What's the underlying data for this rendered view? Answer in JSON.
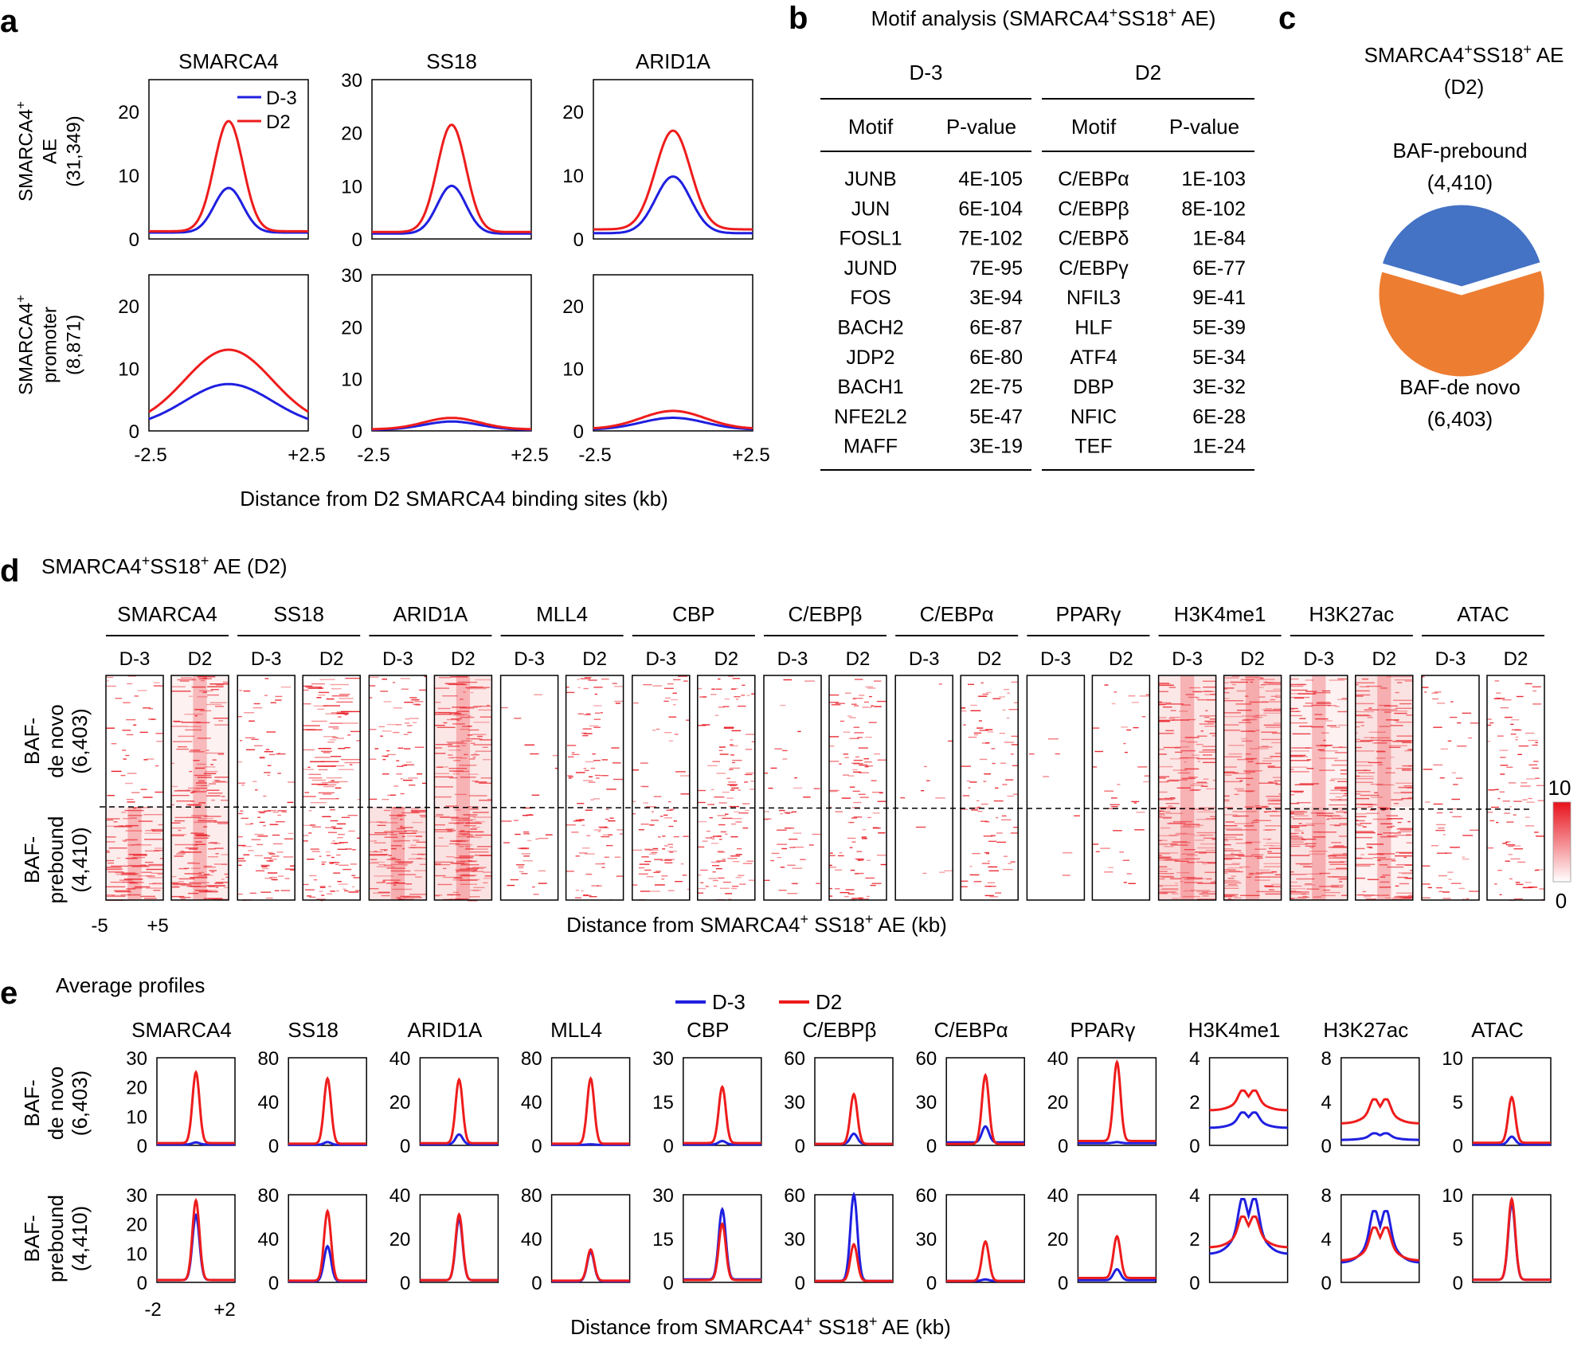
{
  "panel_labels": [
    "a",
    "b",
    "c",
    "d",
    "e"
  ],
  "colors": {
    "d_minus3": "#1f1fe0",
    "d2": "#ee1c1c",
    "blue_label": "#1f5fa6",
    "orange_label": "#e36c1a",
    "pie_blue": "#4472c4",
    "pie_orange": "#ed7d31"
  },
  "chart_data": [
    {
      "type": "line",
      "panel": "a",
      "title": "",
      "xlabel": "Distance from D2 SMARCA4 binding sites (kb)",
      "columns": [
        "SMARCA4",
        "SS18",
        "ARID1A"
      ],
      "row_labels": [
        [
          "SMARCA4⁺",
          "AE",
          "(31,349)"
        ],
        [
          "SMARCA4⁺",
          "promoter",
          "(8,871)"
        ]
      ],
      "x_ticks": [
        "-2.5",
        "+2.5"
      ],
      "ylims": [
        [
          0,
          25
        ],
        [
          0,
          30
        ],
        [
          0,
          25
        ]
      ],
      "yticks": [
        [
          0,
          10,
          20
        ],
        [
          0,
          10,
          20,
          30
        ],
        [
          0,
          10,
          20
        ]
      ],
      "legend": [
        "D-3",
        "D2"
      ],
      "series": [
        {
          "name": "D-3",
          "peaks": [
            [
              8,
              10,
              9.8
            ],
            [
              7.5,
              1.8,
              2.1
            ]
          ],
          "bases": [
            [
              1,
              1,
              0.9
            ],
            [
              0.6,
              0.2,
              0.2
            ]
          ],
          "widths": [
            [
              0.18,
              0.18,
              0.22
            ],
            [
              0.55,
              0.35,
              0.4
            ]
          ]
        },
        {
          "name": "D2",
          "peaks": [
            [
              18.5,
              21.5,
              17
            ],
            [
              13,
              2.5,
              3.2
            ]
          ],
          "bases": [
            [
              1.2,
              1.3,
              1.5
            ],
            [
              0.7,
              0.3,
              0.3
            ]
          ],
          "widths": [
            [
              0.18,
              0.18,
              0.22
            ],
            [
              0.55,
              0.35,
              0.4
            ]
          ]
        }
      ]
    },
    {
      "type": "table",
      "panel": "b",
      "title": "Motif analysis (SMARCA4⁺SS18⁺ AE)",
      "groups": [
        "D-3",
        "D2"
      ],
      "columns": [
        "Motif",
        "P-value",
        "Motif",
        "P-value"
      ],
      "rows": [
        [
          "JUNB",
          "4E-105",
          "C/EBPα",
          "1E-103"
        ],
        [
          "JUN",
          "6E-104",
          "C/EBPβ",
          "8E-102"
        ],
        [
          "FOSL1",
          "7E-102",
          "C/EBPδ",
          "1E-84"
        ],
        [
          "JUND",
          "7E-95",
          "C/EBPγ",
          "6E-77"
        ],
        [
          "FOS",
          "3E-94",
          "NFIL3",
          "9E-41"
        ],
        [
          "BACH2",
          "6E-87",
          "HLF",
          "5E-39"
        ],
        [
          "JDP2",
          "6E-80",
          "ATF4",
          "5E-34"
        ],
        [
          "BACH1",
          "2E-75",
          "DBP",
          "3E-32"
        ],
        [
          "NFE2L2",
          "5E-47",
          "NFIC",
          "6E-28"
        ],
        [
          "MAFF",
          "3E-19",
          "TEF",
          "1E-24"
        ]
      ]
    },
    {
      "type": "pie",
      "panel": "c",
      "title_lines": [
        "SMARCA4⁺SS18⁺ AE",
        "(D2)"
      ],
      "slices": [
        {
          "label": "BAF-prebound",
          "count_label": "(4,410)",
          "value": 4410
        },
        {
          "label": "BAF-de novo",
          "count_label": "(6,403)",
          "value": 6403
        }
      ]
    },
    {
      "type": "heatmap",
      "panel": "d",
      "title": "SMARCA4⁺SS18⁺ AE (D2)",
      "factors": [
        "SMARCA4",
        "SS18",
        "ARID1A",
        "MLL4",
        "CBP",
        "C/EBPβ",
        "C/EBPα",
        "PPARγ",
        "H3K4me1",
        "H3K27ac",
        "ATAC"
      ],
      "conditions": [
        "D-3",
        "D2"
      ],
      "row_groups": [
        {
          "lines": [
            "BAF-",
            "de novo",
            "(6,403)"
          ]
        },
        {
          "lines": [
            "BAF-",
            "prebound",
            "(4,410)"
          ]
        }
      ],
      "x_ticks": [
        "-5",
        "+5"
      ],
      "xlabel": "Distance from SMARCA4⁺ SS18⁺ AE (kb)",
      "colorbar": {
        "max": "10",
        "min": "0"
      },
      "intensity": [
        [
          0.35,
          0.75,
          0.3,
          0.7,
          0.5,
          0.85,
          0.05,
          0.45,
          0.25,
          0.55,
          0.1,
          0.55,
          0.04,
          0.45,
          0.02,
          0.2,
          0.85,
          0.95,
          0.75,
          0.9,
          0.2,
          0.45
        ],
        [
          0.8,
          0.8,
          0.55,
          0.6,
          0.9,
          0.9,
          0.25,
          0.35,
          0.45,
          0.5,
          0.25,
          0.4,
          0.02,
          0.3,
          0.01,
          0.1,
          1.0,
          0.9,
          0.9,
          0.75,
          0.25,
          0.3
        ]
      ]
    },
    {
      "type": "line",
      "panel": "e",
      "title": "Average profiles",
      "factors": [
        "SMARCA4",
        "SS18",
        "ARID1A",
        "MLL4",
        "CBP",
        "C/EBPβ",
        "C/EBPα",
        "PPARγ",
        "H3K4me1",
        "H3K27ac",
        "ATAC"
      ],
      "row_groups": [
        {
          "lines": [
            "BAF-",
            "de novo",
            "(6,403)"
          ]
        },
        {
          "lines": [
            "BAF-",
            "prebound",
            "(4,410)"
          ]
        }
      ],
      "legend": [
        "D-3",
        "D2"
      ],
      "x_ticks": [
        "-2",
        "+2"
      ],
      "xlabel": "Distance from SMARCA4⁺ SS18⁺ AE (kb)",
      "ylims": [
        [
          0,
          30
        ],
        [
          0,
          80
        ],
        [
          0,
          40
        ],
        [
          0,
          80
        ],
        [
          0,
          30
        ],
        [
          0,
          60
        ],
        [
          0,
          60
        ],
        [
          0,
          40
        ],
        [
          0,
          4
        ],
        [
          0,
          8
        ],
        [
          0,
          10
        ]
      ],
      "yticks": [
        [
          0,
          10,
          20,
          30
        ],
        [
          0,
          40,
          80
        ],
        [
          0,
          20,
          40
        ],
        [
          0,
          40,
          80
        ],
        [
          0,
          15,
          30
        ],
        [
          0,
          30,
          60
        ],
        [
          0,
          30,
          60
        ],
        [
          0,
          20,
          40
        ],
        [
          0,
          2,
          4
        ],
        [
          0,
          4,
          8
        ],
        [
          0,
          5,
          10
        ]
      ],
      "series": [
        {
          "name": "D-3",
          "peaks": [
            [
              1,
              3,
              5,
              1,
              1.5,
              8,
              13,
              1.5,
              1.5,
              1.1,
              1
            ],
            [
              23,
              33,
              29,
              28,
              25,
              60,
              2,
              6,
              3.8,
              6.5,
              9
            ]
          ],
          "bases": [
            [
              0.3,
              0.5,
              0.5,
              0.5,
              0.3,
              1,
              2,
              1,
              0.8,
              0.5,
              0.1
            ],
            [
              0.8,
              1,
              1,
              1,
              1,
              1,
              1,
              1,
              1.3,
              1.8,
              0.3
            ]
          ]
        },
        {
          "name": "D2",
          "peaks": [
            [
              25,
              61,
              30,
              61,
              20,
              35,
              48,
              38,
              2.5,
              4.2,
              5.5
            ],
            [
              28,
              65,
              31,
              30,
              20,
              26,
              28,
              21,
              3,
              5,
              9.5
            ]
          ],
          "bases": [
            [
              0.8,
              1.5,
              1,
              1.5,
              0.8,
              1,
              1,
              2,
              1.6,
              2,
              0.3
            ],
            [
              0.8,
              1.5,
              1,
              1.5,
              0.8,
              1,
              1,
              2,
              1.6,
              2,
              0.3
            ]
          ],
          "double_peak": [
            false,
            false,
            false,
            false,
            false,
            false,
            false,
            false,
            true,
            true,
            false
          ]
        }
      ]
    }
  ]
}
